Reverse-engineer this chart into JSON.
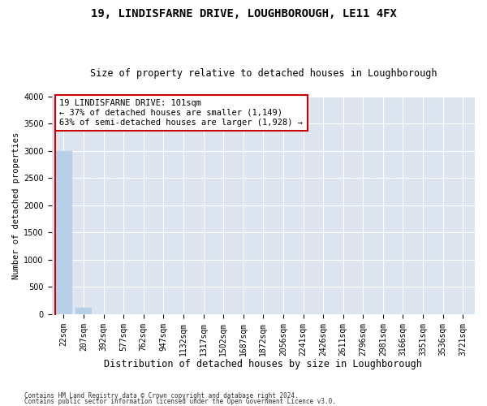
{
  "title": "19, LINDISFARNE DRIVE, LOUGHBOROUGH, LE11 4FX",
  "subtitle": "Size of property relative to detached houses in Loughborough",
  "xlabel": "Distribution of detached houses by size in Loughborough",
  "ylabel": "Number of detached properties",
  "background_color": "#dde6f0",
  "bar_color": "#b8cfe8",
  "bar_edge_color": "#b8cfe8",
  "annotation_line_color": "#cc0000",
  "categories": [
    "22sqm",
    "207sqm",
    "392sqm",
    "577sqm",
    "762sqm",
    "947sqm",
    "1132sqm",
    "1317sqm",
    "1502sqm",
    "1687sqm",
    "1872sqm",
    "2056sqm",
    "2241sqm",
    "2426sqm",
    "2611sqm",
    "2796sqm",
    "2981sqm",
    "3166sqm",
    "3351sqm",
    "3536sqm",
    "3721sqm"
  ],
  "bar_heights": [
    3000,
    125,
    0,
    0,
    0,
    0,
    0,
    0,
    0,
    0,
    0,
    0,
    0,
    0,
    0,
    0,
    0,
    0,
    0,
    0,
    0
  ],
  "property_sqm": 101,
  "pct_smaller": 37,
  "n_smaller": 1149,
  "pct_larger": 63,
  "n_larger": 1928,
  "ylim": [
    0,
    4000
  ],
  "yticks": [
    0,
    500,
    1000,
    1500,
    2000,
    2500,
    3000,
    3500,
    4000
  ],
  "footnote1": "Contains HM Land Registry data © Crown copyright and database right 2024.",
  "footnote2": "Contains public sector information licensed under the Open Government Licence v3.0.",
  "title_fontsize": 10,
  "subtitle_fontsize": 8.5,
  "xlabel_fontsize": 8.5,
  "ylabel_fontsize": 7.5,
  "tick_fontsize": 7,
  "annot_fontsize": 7.5
}
